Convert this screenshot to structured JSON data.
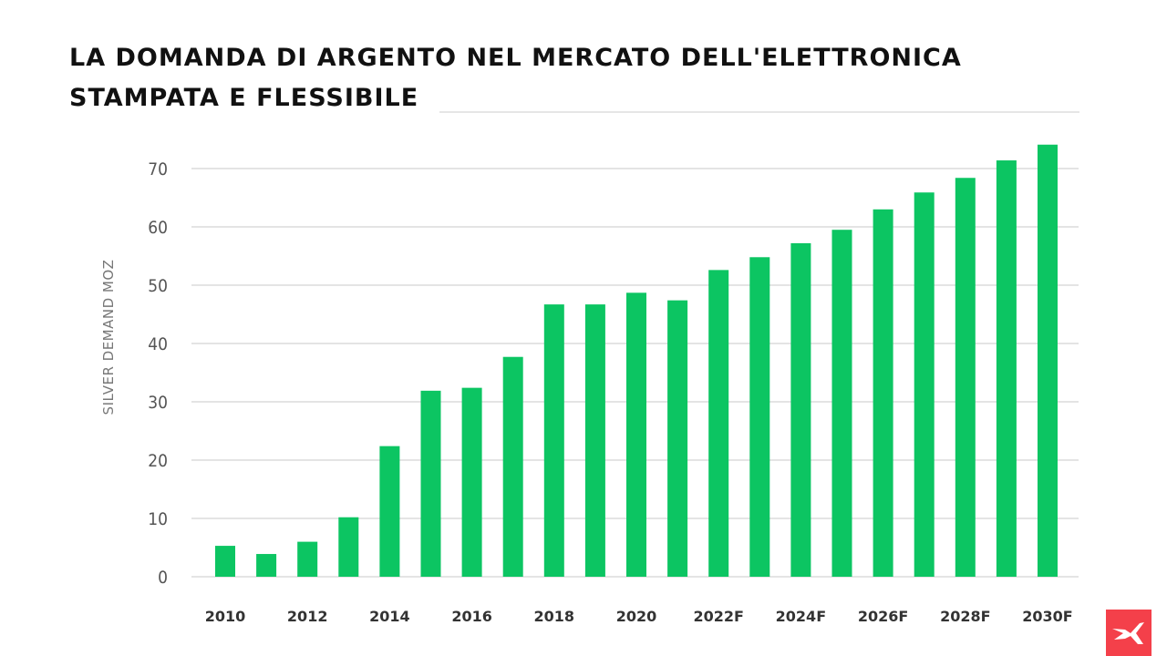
{
  "title_line1": "La domanda di argento nel mercato dell'elettronica",
  "title_line2": "stampata e flessibile",
  "logo_icon": "xtb-x-logo",
  "chart_data": {
    "type": "bar",
    "title": "La domanda di argento nel mercato dell'elettronica stampata e flessibile",
    "xlabel": "",
    "ylabel": "SILVER DEMAND MOZ",
    "ylim": [
      0,
      70
    ],
    "yticks": [
      0,
      10,
      20,
      30,
      40,
      50,
      60,
      70
    ],
    "grid": true,
    "bar_color": "#0cc562",
    "categories": [
      "2010",
      "2011",
      "2012",
      "2013",
      "2014",
      "2015",
      "2016",
      "2017",
      "2018",
      "2019",
      "2020",
      "2021",
      "2022F",
      "2023F",
      "2024F",
      "2025F",
      "2026F",
      "2027F",
      "2028F",
      "2029F",
      "2030F"
    ],
    "xtick_labels": [
      "2010",
      "",
      "2012",
      "",
      "2014",
      "",
      "2016",
      "",
      "2018",
      "",
      "2020",
      "",
      "2022F",
      "",
      "2024F",
      "",
      "2026F",
      "",
      "2028F",
      "",
      "2030F"
    ],
    "values": [
      5.3,
      3.9,
      6.0,
      10.2,
      22.4,
      31.9,
      32.4,
      37.7,
      46.7,
      46.7,
      48.7,
      47.4,
      52.6,
      54.8,
      57.2,
      59.5,
      63.0,
      65.9,
      68.4,
      71.4,
      74.1
    ]
  }
}
